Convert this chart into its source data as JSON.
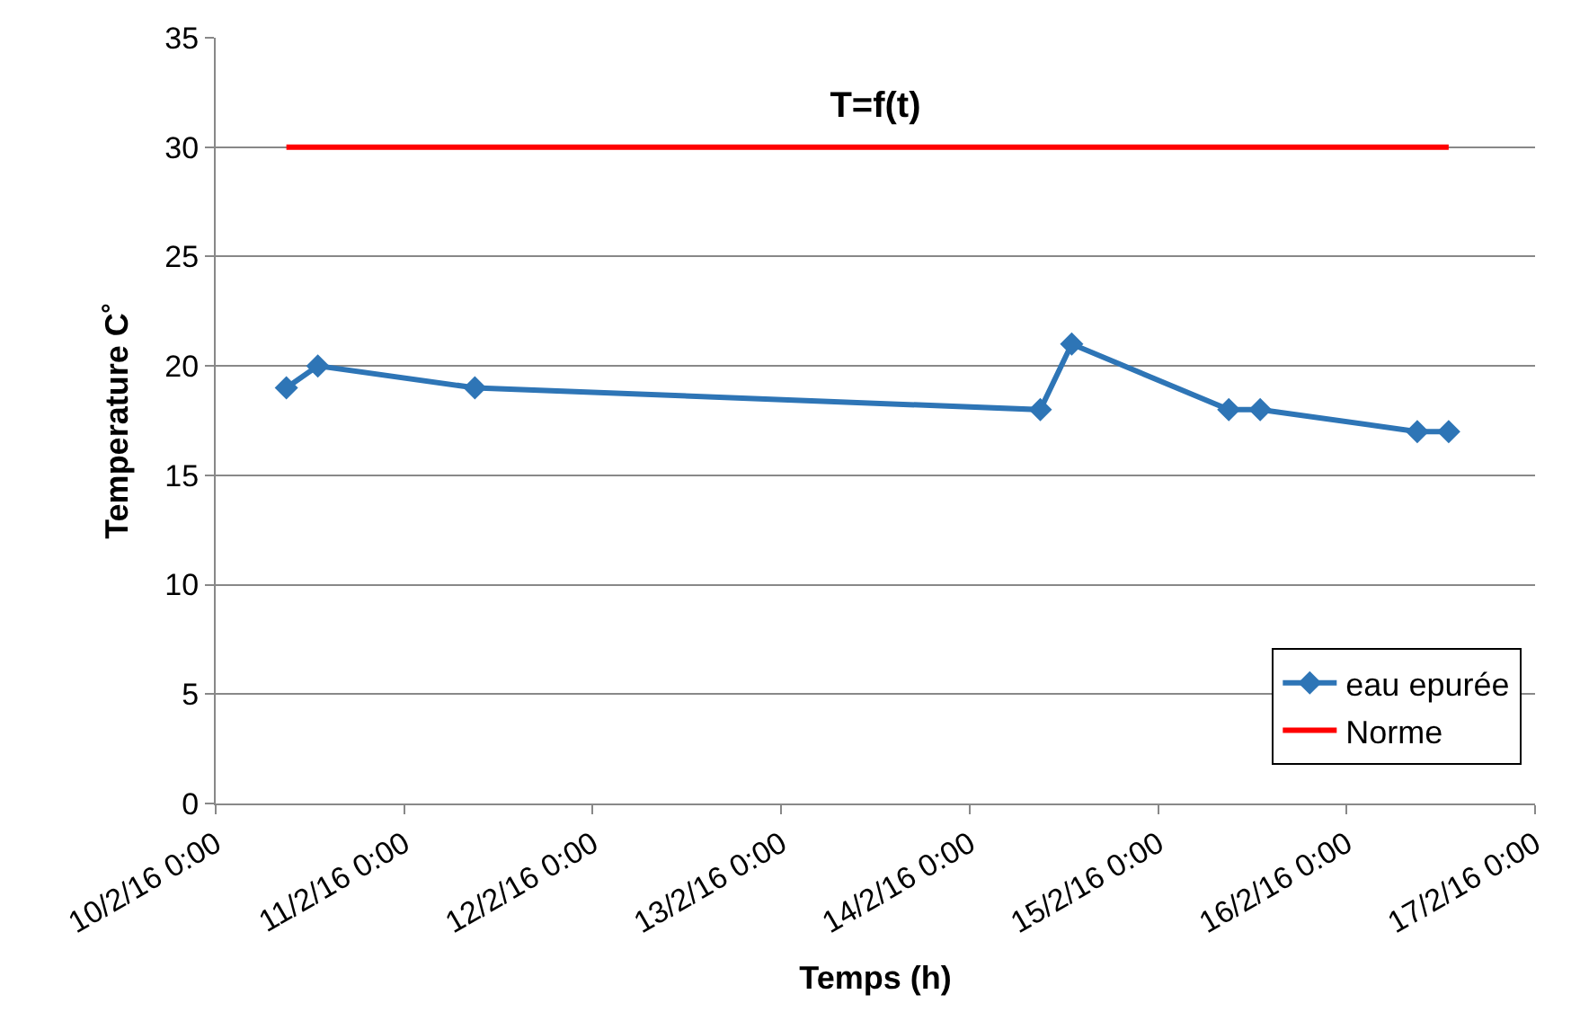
{
  "chart_data": {
    "type": "line",
    "title": "T=f(t)",
    "xlabel": "Temps (h)",
    "ylabel": "Temperature C˚",
    "xlim": [
      "--02-10",
      "--02-17"
    ],
    "xticks": [
      {
        "value": "--02-10",
        "label": "10/2/16 0:00"
      },
      {
        "value": "--02-11",
        "label": "11/2/16 0:00"
      },
      {
        "value": "--02-12",
        "label": "12/2/16 0:00"
      },
      {
        "value": "--02-13",
        "label": "13/2/16 0:00"
      },
      {
        "value": "--02-14",
        "label": "14/2/16 0:00"
      },
      {
        "value": "--02-15",
        "label": "15/2/16 0:00"
      },
      {
        "value": "--02-16",
        "label": "16/2/16 0:00"
      },
      {
        "value": "--02-17",
        "label": "17/2/16 0:00"
      }
    ],
    "ylim": [
      0,
      35
    ],
    "yticks": [
      0,
      5,
      10,
      15,
      20,
      25,
      30,
      35
    ],
    "grid": "y",
    "legend": "bottom right",
    "series": [
      {
        "name": "eau epurée",
        "color": "#2e75b6",
        "marker": "diamond",
        "x": [
          "--02-10T09:00",
          "--02-10T13:00",
          "--02-11T09:00",
          "--02-14T09:00",
          "--02-14T13:00",
          "--02-15T09:00",
          "--02-15T13:00",
          "--02-16T09:00",
          "--02-16T13:00"
        ],
        "values": [
          19,
          20,
          19,
          18,
          21,
          18,
          18,
          17,
          17
        ]
      },
      {
        "name": "Norme",
        "color": "#ff0000",
        "marker": "none",
        "x": [
          "--02-10T09:00",
          "--02-16T13:00"
        ],
        "values": [
          30,
          30
        ]
      }
    ]
  }
}
